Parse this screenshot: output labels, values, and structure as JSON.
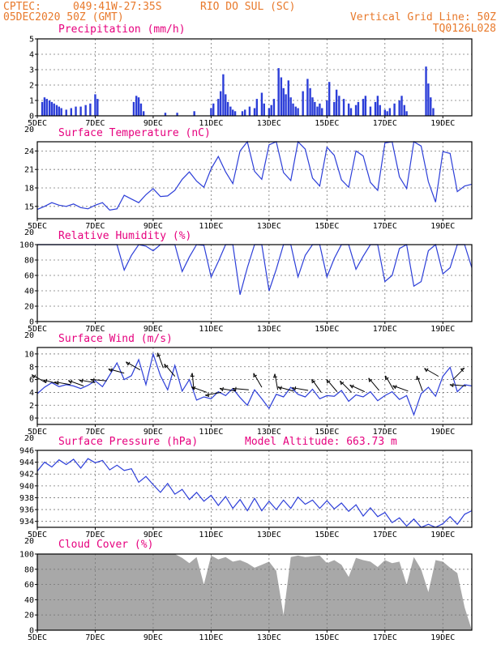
{
  "header": {
    "source": "CPTEC:",
    "coords": "049:41W-27:35S",
    "location": "RIO DO SUL (SC)",
    "run": "05DEC2020 50Z (GMT)",
    "grid_line": "Vertical Grid Line: 50Z",
    "model": "TQ0126L028"
  },
  "colors": {
    "header": "#e8792b",
    "panel_title": "#e6007e",
    "series": "#2c3ed8",
    "bars": "#2c3ed8",
    "cloud": "#a8a8a8"
  },
  "chart_data": [
    {
      "type": "bar",
      "title": "Precipitation (mm/h)",
      "ylim": [
        0,
        5
      ],
      "yticks": [
        "0",
        "1",
        "2",
        "3",
        "4",
        "5"
      ],
      "xticks": [
        "5DEC",
        "7DEC",
        "9DEC",
        "11DEC",
        "13DEC",
        "15DEC",
        "17DEC",
        "19DEC"
      ],
      "corner_label": "20",
      "grid": true,
      "x_range_days": [
        5,
        20
      ],
      "x_day": [
        5.17,
        5.25,
        5.33,
        5.42,
        5.5,
        5.58,
        5.67,
        5.75,
        5.83,
        6.0,
        6.17,
        6.33,
        6.5,
        6.67,
        6.83,
        7.0,
        7.08,
        8.33,
        8.42,
        8.5,
        8.58,
        8.67,
        9.42,
        9.83,
        10.42,
        11.0,
        11.08,
        11.25,
        11.33,
        11.42,
        11.5,
        11.58,
        11.67,
        11.75,
        11.83,
        12.08,
        12.17,
        12.33,
        12.5,
        12.58,
        12.75,
        12.83,
        13.0,
        13.08,
        13.17,
        13.33,
        13.42,
        13.5,
        13.58,
        13.67,
        13.75,
        13.83,
        13.92,
        14.0,
        14.17,
        14.33,
        14.42,
        14.5,
        14.58,
        14.67,
        14.75,
        14.83,
        15.0,
        15.08,
        15.25,
        15.33,
        15.42,
        15.58,
        15.75,
        15.83,
        16.0,
        16.08,
        16.25,
        16.33,
        16.5,
        16.67,
        16.75,
        16.83,
        17.0,
        17.08,
        17.17,
        17.33,
        17.5,
        17.58,
        17.67,
        17.75,
        18.42,
        18.5,
        18.58,
        18.67
      ],
      "values": [
        0.9,
        1.2,
        1.1,
        1.0,
        0.9,
        0.8,
        0.7,
        0.6,
        0.5,
        0.4,
        0.5,
        0.6,
        0.6,
        0.7,
        0.8,
        1.4,
        1.1,
        0.9,
        1.3,
        1.2,
        0.8,
        0.3,
        0.2,
        0.2,
        0.3,
        0.5,
        0.8,
        1.1,
        1.6,
        2.7,
        1.4,
        0.9,
        0.6,
        0.4,
        0.3,
        0.3,
        0.4,
        0.6,
        0.5,
        1.1,
        1.5,
        0.8,
        0.5,
        0.7,
        1.1,
        3.1,
        2.5,
        1.8,
        1.4,
        2.3,
        1.2,
        0.8,
        0.6,
        0.5,
        1.6,
        2.4,
        1.8,
        1.2,
        0.9,
        0.6,
        0.8,
        0.5,
        1.0,
        2.2,
        0.9,
        1.7,
        1.3,
        1.1,
        0.8,
        0.5,
        0.7,
        0.9,
        1.1,
        1.3,
        0.6,
        0.9,
        1.3,
        0.7,
        0.4,
        0.3,
        0.5,
        0.8,
        1.0,
        1.3,
        0.7,
        0.3,
        3.2,
        2.1,
        1.2,
        0.5
      ]
    },
    {
      "type": "line",
      "title": "Surface Temperature (nC)",
      "ylim": [
        13,
        25.5
      ],
      "yticks": [
        "15",
        "18",
        "21",
        "24"
      ],
      "xticks": [
        "5DEC",
        "7DEC",
        "9DEC",
        "11DEC",
        "13DEC",
        "15DEC",
        "17DEC",
        "19DEC"
      ],
      "corner_label": "20",
      "grid": true,
      "x_range_days": [
        5,
        20
      ],
      "x_day": [
        5.0,
        5.25,
        5.5,
        5.75,
        6.0,
        6.25,
        6.5,
        6.75,
        7.0,
        7.25,
        7.5,
        7.75,
        8.0,
        8.25,
        8.5,
        8.75,
        9.0,
        9.25,
        9.5,
        9.75,
        10.0,
        10.25,
        10.5,
        10.75,
        11.0,
        11.25,
        11.5,
        11.75,
        12.0,
        12.25,
        12.5,
        12.75,
        13.0,
        13.25,
        13.5,
        13.75,
        14.0,
        14.25,
        14.5,
        14.75,
        15.0,
        15.25,
        15.5,
        15.75,
        16.0,
        16.25,
        16.5,
        16.75,
        17.0,
        17.25,
        17.5,
        17.75,
        18.0,
        18.25,
        18.5,
        18.75,
        19.0,
        19.25,
        19.5,
        19.75,
        20.0
      ],
      "values": [
        14.5,
        15.0,
        15.6,
        15.2,
        15.0,
        15.4,
        14.8,
        14.6,
        15.2,
        15.6,
        14.4,
        14.6,
        16.8,
        16.2,
        15.6,
        16.9,
        17.9,
        16.6,
        16.7,
        17.6,
        19.4,
        20.6,
        19.1,
        18.1,
        21.1,
        23.1,
        20.6,
        18.7,
        24.0,
        26.0,
        20.7,
        19.4,
        25.0,
        26.0,
        20.5,
        19.2,
        25.5,
        24.3,
        19.6,
        18.3,
        24.6,
        23.3,
        19.3,
        18.1,
        24.0,
        23.2,
        18.9,
        17.6,
        25.3,
        26.0,
        19.8,
        17.9,
        25.5,
        24.8,
        19.0,
        15.7,
        23.9,
        23.6,
        17.4,
        18.3,
        18.6
      ]
    },
    {
      "type": "line",
      "title": "Relative Humidity (%)",
      "ylim": [
        0,
        100
      ],
      "yticks": [
        "0",
        "20",
        "40",
        "60",
        "80",
        "100"
      ],
      "xticks": [
        "5DEC",
        "7DEC",
        "9DEC",
        "11DEC",
        "13DEC",
        "15DEC",
        "17DEC",
        "19DEC"
      ],
      "corner_label": "20",
      "grid": true,
      "x_range_days": [
        5,
        20
      ],
      "x_day": [
        5.0,
        5.25,
        5.5,
        5.75,
        6.0,
        6.25,
        6.5,
        6.75,
        7.0,
        7.25,
        7.5,
        7.75,
        8.0,
        8.25,
        8.5,
        8.75,
        9.0,
        9.25,
        9.5,
        9.75,
        10.0,
        10.25,
        10.5,
        10.75,
        11.0,
        11.25,
        11.5,
        11.75,
        12.0,
        12.25,
        12.5,
        12.75,
        13.0,
        13.25,
        13.5,
        13.75,
        14.0,
        14.25,
        14.5,
        14.75,
        15.0,
        15.25,
        15.5,
        15.75,
        16.0,
        16.25,
        16.5,
        16.75,
        17.0,
        17.25,
        17.5,
        17.75,
        18.0,
        18.25,
        18.5,
        18.75,
        19.0,
        19.25,
        19.5,
        19.75,
        20.0
      ],
      "values": [
        100,
        100,
        100,
        100,
        100,
        100,
        100,
        100,
        100,
        100,
        100,
        100,
        67,
        86,
        100,
        98,
        92,
        100,
        100,
        100,
        65,
        84,
        100,
        99,
        58,
        78,
        100,
        100,
        35,
        70,
        100,
        100,
        40,
        68,
        100,
        100,
        58,
        86,
        100,
        100,
        58,
        82,
        100,
        100,
        68,
        85,
        100,
        100,
        52,
        60,
        95,
        100,
        46,
        52,
        92,
        100,
        62,
        70,
        100,
        100,
        70
      ]
    },
    {
      "type": "line",
      "title": "Surface Wind (m/s)",
      "ylim": [
        -1,
        11
      ],
      "yticks": [
        "0",
        "2",
        "4",
        "6",
        "8",
        "10"
      ],
      "xticks": [
        "5DEC",
        "7DEC",
        "9DEC",
        "11DEC",
        "13DEC",
        "15DEC",
        "17DEC",
        "19DEC"
      ],
      "corner_label": "20",
      "grid": true,
      "x_range_days": [
        5,
        20
      ],
      "x_day": [
        5.0,
        5.25,
        5.5,
        5.75,
        6.0,
        6.25,
        6.5,
        6.75,
        7.0,
        7.25,
        7.5,
        7.75,
        8.0,
        8.25,
        8.5,
        8.75,
        9.0,
        9.25,
        9.5,
        9.75,
        10.0,
        10.25,
        10.5,
        10.75,
        11.0,
        11.25,
        11.5,
        11.75,
        12.0,
        12.25,
        12.5,
        12.75,
        13.0,
        13.25,
        13.5,
        13.75,
        14.0,
        14.25,
        14.5,
        14.75,
        15.0,
        15.25,
        15.5,
        15.75,
        16.0,
        16.25,
        16.5,
        16.75,
        17.0,
        17.25,
        17.5,
        17.75,
        18.0,
        18.25,
        18.5,
        18.75,
        19.0,
        19.25,
        19.5,
        19.75,
        20.0
      ],
      "values": [
        3.8,
        4.8,
        5.5,
        4.9,
        5.2,
        5.0,
        4.6,
        5.1,
        5.8,
        4.9,
        6.7,
        8.6,
        6.0,
        6.6,
        9.1,
        5.2,
        10.0,
        6.6,
        4.4,
        8.2,
        4.2,
        6.0,
        2.8,
        3.3,
        3.0,
        4.1,
        3.5,
        4.6,
        3.2,
        2.0,
        4.4,
        3.0,
        1.5,
        3.7,
        3.3,
        4.8,
        3.7,
        3.3,
        4.5,
        3.0,
        3.5,
        3.4,
        4.3,
        2.6,
        3.6,
        3.3,
        4.1,
        2.7,
        3.5,
        4.1,
        2.9,
        3.5,
        0.5,
        3.8,
        4.8,
        3.4,
        6.5,
        7.9,
        4.1,
        5.2,
        5.0
      ],
      "vectors": [
        {
          "day": 5.3,
          "speed": 5.5,
          "dir_deg": 150
        },
        {
          "day": 5.75,
          "speed": 5.3,
          "dir_deg": 165
        },
        {
          "day": 6.15,
          "speed": 5.2,
          "dir_deg": 170
        },
        {
          "day": 6.6,
          "speed": 5.0,
          "dir_deg": 160
        },
        {
          "day": 7.0,
          "speed": 5.5,
          "dir_deg": 170
        },
        {
          "day": 7.4,
          "speed": 5.8,
          "dir_deg": 175
        },
        {
          "day": 8.0,
          "speed": 7.0,
          "dir_deg": 165
        },
        {
          "day": 8.55,
          "speed": 7.5,
          "dir_deg": 150
        },
        {
          "day": 9.35,
          "speed": 7.8,
          "dir_deg": 110
        },
        {
          "day": 9.75,
          "speed": 6.5,
          "dir_deg": 130
        },
        {
          "day": 10.4,
          "speed": 4.5,
          "dir_deg": 95
        },
        {
          "day": 10.85,
          "speed": 4.0,
          "dir_deg": 160
        },
        {
          "day": 11.35,
          "speed": 4.0,
          "dir_deg": 190
        },
        {
          "day": 11.85,
          "speed": 4.2,
          "dir_deg": 170
        },
        {
          "day": 12.3,
          "speed": 4.4,
          "dir_deg": 175
        },
        {
          "day": 12.75,
          "speed": 4.8,
          "dir_deg": 120
        },
        {
          "day": 13.3,
          "speed": 4.4,
          "dir_deg": 100
        },
        {
          "day": 13.85,
          "speed": 4.2,
          "dir_deg": 165
        },
        {
          "day": 14.35,
          "speed": 4.3,
          "dir_deg": 170
        },
        {
          "day": 14.8,
          "speed": 4.0,
          "dir_deg": 125
        },
        {
          "day": 15.35,
          "speed": 4.1,
          "dir_deg": 130
        },
        {
          "day": 15.85,
          "speed": 4.0,
          "dir_deg": 135
        },
        {
          "day": 16.3,
          "speed": 4.1,
          "dir_deg": 155
        },
        {
          "day": 16.8,
          "speed": 4.3,
          "dir_deg": 130
        },
        {
          "day": 17.3,
          "speed": 4.4,
          "dir_deg": 120
        },
        {
          "day": 17.8,
          "speed": 4.2,
          "dir_deg": 160
        },
        {
          "day": 18.3,
          "speed": 4.2,
          "dir_deg": 110
        },
        {
          "day": 18.85,
          "speed": 6.5,
          "dir_deg": 150
        },
        {
          "day": 19.35,
          "speed": 6.0,
          "dir_deg": 45
        },
        {
          "day": 19.8,
          "speed": 5.0,
          "dir_deg": 175
        }
      ]
    },
    {
      "type": "line",
      "title": "Surface Pressure (hPa)",
      "subtitle": "Model Altitude: 663.73 m",
      "ylim": [
        933,
        946
      ],
      "yticks": [
        "934",
        "936",
        "938",
        "940",
        "942",
        "944",
        "946"
      ],
      "xticks": [
        "5DEC",
        "7DEC",
        "9DEC",
        "11DEC",
        "13DEC",
        "15DEC",
        "17DEC",
        "19DEC"
      ],
      "corner_label": "20",
      "grid": true,
      "x_range_days": [
        5,
        20
      ],
      "x_day": [
        5.0,
        5.25,
        5.5,
        5.75,
        6.0,
        6.25,
        6.5,
        6.75,
        7.0,
        7.25,
        7.5,
        7.75,
        8.0,
        8.25,
        8.5,
        8.75,
        9.0,
        9.25,
        9.5,
        9.75,
        10.0,
        10.25,
        10.5,
        10.75,
        11.0,
        11.25,
        11.5,
        11.75,
        12.0,
        12.25,
        12.5,
        12.75,
        13.0,
        13.25,
        13.5,
        13.75,
        14.0,
        14.25,
        14.5,
        14.75,
        15.0,
        15.25,
        15.5,
        15.75,
        16.0,
        16.25,
        16.5,
        16.75,
        17.0,
        17.25,
        17.5,
        17.75,
        18.0,
        18.25,
        18.5,
        18.75,
        19.0,
        19.25,
        19.5,
        19.75,
        20.0
      ],
      "values": [
        942.5,
        944.0,
        943.2,
        944.4,
        943.6,
        944.5,
        943.0,
        944.6,
        943.9,
        944.3,
        942.7,
        943.5,
        942.6,
        942.9,
        940.6,
        941.6,
        940.2,
        938.9,
        940.4,
        938.6,
        939.4,
        937.7,
        938.9,
        937.4,
        938.4,
        936.7,
        938.2,
        936.2,
        937.7,
        935.8,
        937.9,
        935.8,
        937.4,
        936.0,
        937.6,
        936.2,
        938.1,
        936.9,
        937.6,
        936.2,
        937.5,
        936.1,
        937.1,
        935.7,
        936.8,
        934.9,
        936.3,
        934.8,
        935.5,
        933.8,
        934.6,
        933.2,
        934.4,
        932.5,
        933.5,
        932.0,
        933.6,
        934.8,
        933.5,
        935.2,
        935.8
      ]
    },
    {
      "type": "area",
      "title": "Cloud Cover (%)",
      "ylim": [
        0,
        100
      ],
      "yticks": [
        "0",
        "20",
        "40",
        "60",
        "80",
        "100"
      ],
      "xticks": [
        "5DEC",
        "7DEC",
        "9DEC",
        "11DEC",
        "13DEC",
        "15DEC",
        "17DEC",
        "19DEC"
      ],
      "grid": true,
      "x_range_days": [
        5,
        20
      ],
      "x_day": [
        5.0,
        5.25,
        5.5,
        5.75,
        6.0,
        6.25,
        6.5,
        6.75,
        7.0,
        7.25,
        7.5,
        7.75,
        8.0,
        8.25,
        8.5,
        8.75,
        9.0,
        9.25,
        9.5,
        9.75,
        10.0,
        10.25,
        10.5,
        10.75,
        11.0,
        11.25,
        11.5,
        11.75,
        12.0,
        12.25,
        12.5,
        12.75,
        13.0,
        13.25,
        13.5,
        13.75,
        14.0,
        14.25,
        14.5,
        14.75,
        15.0,
        15.25,
        15.5,
        15.75,
        16.0,
        16.25,
        16.5,
        16.75,
        17.0,
        17.25,
        17.5,
        17.75,
        18.0,
        18.25,
        18.5,
        18.75,
        19.0,
        19.25,
        19.5,
        19.75,
        20.0
      ],
      "values": [
        100,
        100,
        100,
        100,
        100,
        100,
        100,
        100,
        100,
        100,
        100,
        100,
        100,
        100,
        100,
        100,
        100,
        100,
        100,
        100,
        95,
        88,
        96,
        60,
        98,
        93,
        96,
        90,
        92,
        88,
        82,
        86,
        90,
        78,
        20,
        96,
        98,
        96,
        97,
        98,
        88,
        92,
        86,
        70,
        95,
        92,
        90,
        83,
        92,
        88,
        90,
        60,
        96,
        80,
        50,
        92,
        90,
        82,
        75,
        30,
        0
      ]
    }
  ]
}
